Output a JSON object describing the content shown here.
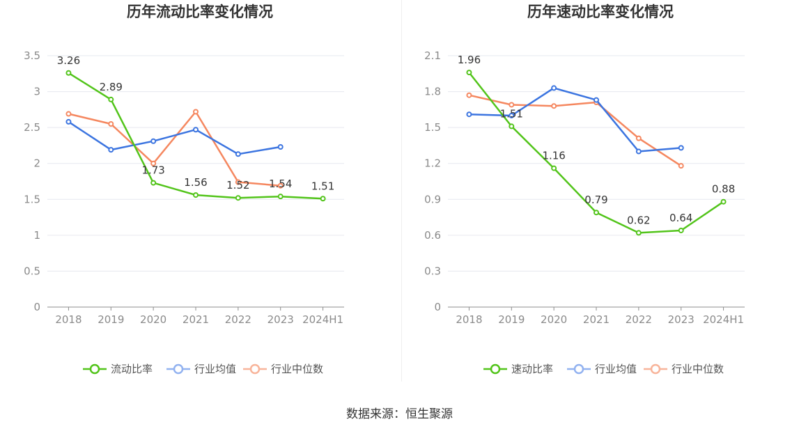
{
  "chart_data": [
    {
      "type": "line",
      "title": "历年流动比率变化情况",
      "categories": [
        "2018",
        "2019",
        "2020",
        "2021",
        "2022",
        "2023",
        "2024H1"
      ],
      "ylim": [
        0,
        3.5
      ],
      "yticks": [
        "0",
        "0.5",
        "1",
        "1.5",
        "2",
        "2.5",
        "3",
        "3.5"
      ],
      "ytick_values": [
        0,
        0.5,
        1,
        1.5,
        2,
        2.5,
        3,
        3.5
      ],
      "grid": true,
      "legend_position": "bottom",
      "series": [
        {
          "name": "流动比率",
          "color": "#52c41a",
          "values": [
            3.26,
            2.89,
            1.73,
            1.56,
            1.52,
            1.54,
            1.51
          ],
          "labels": [
            "3.26",
            "2.89",
            "1.73",
            "1.56",
            "1.52",
            "1.54",
            "1.51"
          ],
          "show_labels": true
        },
        {
          "name": "行业均值",
          "color": "#3b74e0",
          "values": [
            2.58,
            2.19,
            2.31,
            2.47,
            2.13,
            2.23,
            null
          ],
          "show_labels": false
        },
        {
          "name": "行业中位数",
          "color": "#f5875f",
          "values": [
            2.69,
            2.55,
            2.0,
            2.72,
            1.74,
            1.69,
            null
          ],
          "show_labels": false
        }
      ]
    },
    {
      "type": "line",
      "title": "历年速动比率变化情况",
      "categories": [
        "2018",
        "2019",
        "2020",
        "2021",
        "2022",
        "2023",
        "2024H1"
      ],
      "ylim": [
        0,
        2.1
      ],
      "yticks": [
        "0",
        "0.3",
        "0.6",
        "0.9",
        "1.2",
        "1.5",
        "1.8",
        "2.1"
      ],
      "ytick_values": [
        0,
        0.3,
        0.6,
        0.9,
        1.2,
        1.5,
        1.8,
        2.1
      ],
      "grid": true,
      "legend_position": "bottom",
      "series": [
        {
          "name": "速动比率",
          "color": "#52c41a",
          "values": [
            1.96,
            1.51,
            1.16,
            0.79,
            0.62,
            0.64,
            0.88
          ],
          "labels": [
            "1.96",
            "1.51",
            "1.16",
            "0.79",
            "0.62",
            "0.64",
            "0.88"
          ],
          "show_labels": true
        },
        {
          "name": "行业均值",
          "color": "#3b74e0",
          "values": [
            1.61,
            1.6,
            1.83,
            1.73,
            1.3,
            1.33,
            null
          ],
          "show_labels": false
        },
        {
          "name": "行业中位数",
          "color": "#f5875f",
          "values": [
            1.77,
            1.69,
            1.68,
            1.71,
            1.41,
            1.18,
            null
          ],
          "show_labels": false
        }
      ]
    }
  ],
  "source": "数据来源：恒生聚源"
}
